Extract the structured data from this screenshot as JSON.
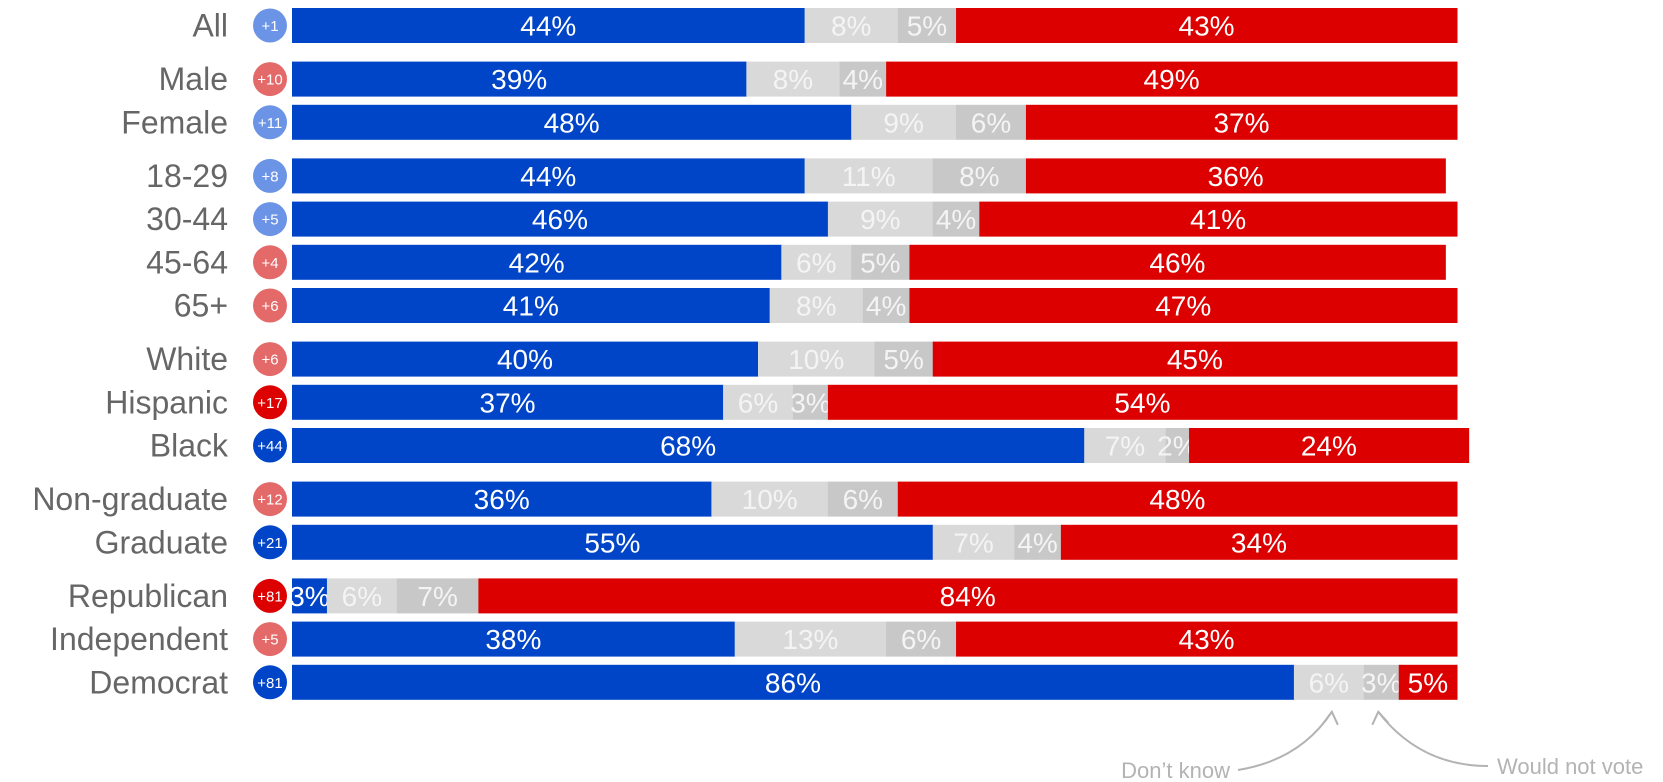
{
  "colors": {
    "dem": "#0044c8",
    "rep": "#dc0000",
    "dont_know": "#d9d9d9",
    "would_not_vote": "#c8c8c8",
    "label_dark": "#666666",
    "note_text": "#b3b3b3",
    "badge_dem_strong": "#0044c8",
    "badge_dem_light": "#6b93e6",
    "badge_rep_strong": "#dc0000",
    "badge_rep_light": "#e46a6a"
  },
  "chart_data": {
    "type": "bar",
    "orientation": "horizontal",
    "stacked": true,
    "normalized_to_100": true,
    "categories": [
      "All",
      "Male",
      "Female",
      "18-29",
      "30-44",
      "45-64",
      "65+",
      "White",
      "Hispanic",
      "Black",
      "Non-graduate",
      "Graduate",
      "Republican",
      "Independent",
      "Democrat"
    ],
    "groups": [
      [
        "All"
      ],
      [
        "Male",
        "Female"
      ],
      [
        "18-29",
        "30-44",
        "45-64",
        "65+"
      ],
      [
        "White",
        "Hispanic",
        "Black"
      ],
      [
        "Non-graduate",
        "Graduate"
      ],
      [
        "Republican",
        "Independent",
        "Democrat"
      ]
    ],
    "series": [
      {
        "key": "dem",
        "values": [
          44,
          39,
          48,
          44,
          46,
          42,
          41,
          40,
          37,
          68,
          36,
          55,
          3,
          38,
          86
        ]
      },
      {
        "key": "dont_know",
        "name": "Don’t know",
        "values": [
          8,
          8,
          9,
          11,
          9,
          6,
          8,
          10,
          6,
          7,
          10,
          7,
          6,
          13,
          6
        ]
      },
      {
        "key": "would_not_vote",
        "name": "Would not vote",
        "values": [
          5,
          4,
          6,
          8,
          4,
          5,
          4,
          5,
          3,
          2,
          6,
          4,
          7,
          6,
          3
        ]
      },
      {
        "key": "rep",
        "values": [
          43,
          49,
          37,
          36,
          41,
          46,
          47,
          45,
          54,
          24,
          48,
          34,
          84,
          43,
          5
        ]
      }
    ],
    "margins": [
      {
        "label": "+1",
        "party": "dem",
        "strength": "light"
      },
      {
        "label": "+10",
        "party": "rep",
        "strength": "light"
      },
      {
        "label": "+11",
        "party": "dem",
        "strength": "light"
      },
      {
        "label": "+8",
        "party": "dem",
        "strength": "light"
      },
      {
        "label": "+5",
        "party": "dem",
        "strength": "light"
      },
      {
        "label": "+4",
        "party": "rep",
        "strength": "light"
      },
      {
        "label": "+6",
        "party": "rep",
        "strength": "light"
      },
      {
        "label": "+6",
        "party": "rep",
        "strength": "light"
      },
      {
        "label": "+17",
        "party": "rep",
        "strength": "strong"
      },
      {
        "label": "+44",
        "party": "dem",
        "strength": "strong"
      },
      {
        "label": "+12",
        "party": "rep",
        "strength": "light"
      },
      {
        "label": "+21",
        "party": "dem",
        "strength": "strong"
      },
      {
        "label": "+81",
        "party": "rep",
        "strength": "strong"
      },
      {
        "label": "+5",
        "party": "rep",
        "strength": "light"
      },
      {
        "label": "+81",
        "party": "dem",
        "strength": "strong"
      }
    ],
    "value_suffix": "%",
    "annotations": [
      {
        "text": "Don’t know",
        "points_to": "dont_know",
        "row": "Democrat"
      },
      {
        "text": "Would not vote",
        "points_to": "would_not_vote",
        "row": "Democrat"
      }
    ],
    "xlim": [
      0,
      100
    ]
  }
}
